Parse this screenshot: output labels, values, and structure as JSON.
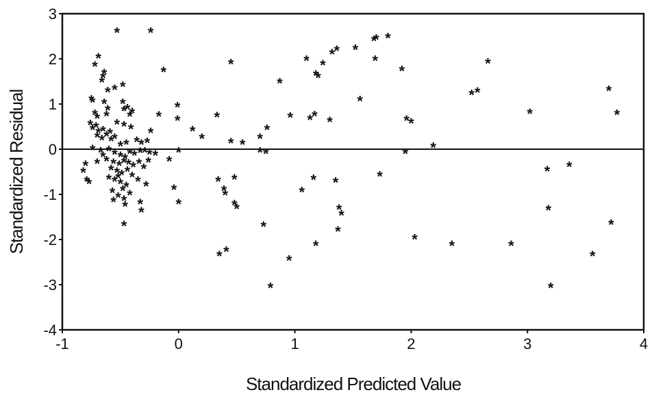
{
  "chart_data": {
    "type": "scatter",
    "title": "",
    "xlabel": "Standardized Predicted Value",
    "ylabel": "Standardized Residual",
    "xlim": [
      -1,
      4
    ],
    "ylim": [
      -4,
      3
    ],
    "xticks": [
      "-1",
      "0",
      "1",
      "2",
      "3",
      "4"
    ],
    "yticks": [
      "3",
      "2",
      "1",
      "0",
      "-1",
      "-2",
      "-3",
      "-4"
    ],
    "reference_line_y": 0,
    "grid": false,
    "marker": "*",
    "points": [
      [
        -0.53,
        2.6
      ],
      [
        -0.24,
        2.6
      ],
      [
        -0.69,
        2.03
      ],
      [
        -0.72,
        1.85
      ],
      [
        -0.64,
        1.68
      ],
      [
        -0.65,
        1.6
      ],
      [
        -0.66,
        1.5
      ],
      [
        -0.55,
        1.33
      ],
      [
        -0.61,
        1.28
      ],
      [
        -0.48,
        1.4
      ],
      [
        -0.13,
        1.73
      ],
      [
        -0.75,
        1.1
      ],
      [
        -0.74,
        1.05
      ],
      [
        -0.64,
        1.02
      ],
      [
        -0.61,
        0.88
      ],
      [
        -0.48,
        1.02
      ],
      [
        -0.44,
        0.9
      ],
      [
        -0.47,
        0.86
      ],
      [
        -0.4,
        0.82
      ],
      [
        -0.72,
        0.78
      ],
      [
        -0.7,
        0.7
      ],
      [
        -0.62,
        0.75
      ],
      [
        -0.42,
        0.74
      ],
      [
        -0.17,
        0.74
      ],
      [
        -0.76,
        0.55
      ],
      [
        -0.74,
        0.45
      ],
      [
        -0.71,
        0.5
      ],
      [
        -0.69,
        0.38
      ],
      [
        -0.65,
        0.42
      ],
      [
        -0.59,
        0.36
      ],
      [
        -0.53,
        0.57
      ],
      [
        -0.47,
        0.52
      ],
      [
        -0.41,
        0.46
      ],
      [
        -0.24,
        0.38
      ],
      [
        -0.7,
        0.28
      ],
      [
        -0.66,
        0.22
      ],
      [
        -0.62,
        0.3
      ],
      [
        -0.58,
        0.2
      ],
      [
        -0.55,
        0.25
      ],
      [
        -0.36,
        0.18
      ],
      [
        -0.32,
        0.12
      ],
      [
        -0.27,
        0.16
      ],
      [
        -0.5,
        0.08
      ],
      [
        -0.45,
        0.12
      ],
      [
        -0.74,
        0.0
      ],
      [
        -0.67,
        -0.05
      ],
      [
        -0.6,
        -0.02
      ],
      [
        -0.55,
        -0.1
      ],
      [
        -0.5,
        -0.15
      ],
      [
        -0.46,
        -0.2
      ],
      [
        -0.42,
        -0.08
      ],
      [
        -0.38,
        -0.12
      ],
      [
        -0.33,
        -0.06
      ],
      [
        -0.29,
        -0.05
      ],
      [
        -0.25,
        -0.1
      ],
      [
        -0.2,
        -0.12
      ],
      [
        -0.62,
        -0.25
      ],
      [
        -0.56,
        -0.3
      ],
      [
        -0.51,
        -0.35
      ],
      [
        -0.47,
        -0.28
      ],
      [
        -0.43,
        -0.32
      ],
      [
        -0.39,
        -0.38
      ],
      [
        -0.34,
        -0.3
      ],
      [
        -0.3,
        -0.42
      ],
      [
        -0.26,
        -0.27
      ],
      [
        -0.58,
        -0.45
      ],
      [
        -0.53,
        -0.5
      ],
      [
        -0.49,
        -0.55
      ],
      [
        -0.44,
        -0.48
      ],
      [
        -0.4,
        -0.6
      ],
      [
        -0.6,
        -0.65
      ],
      [
        -0.55,
        -0.7
      ],
      [
        -0.5,
        -0.75
      ],
      [
        -0.45,
        -0.82
      ],
      [
        -0.35,
        -0.7
      ],
      [
        -0.28,
        -0.8
      ],
      [
        -0.57,
        -0.95
      ],
      [
        -0.52,
        -1.05
      ],
      [
        -0.47,
        -1.12
      ],
      [
        -0.42,
        -1.0
      ],
      [
        -0.56,
        -1.15
      ],
      [
        -0.46,
        -1.25
      ],
      [
        -0.33,
        -1.2
      ],
      [
        -0.32,
        -1.38
      ],
      [
        -0.47,
        -1.68
      ],
      [
        -0.8,
        -0.35
      ],
      [
        -0.82,
        -0.5
      ],
      [
        -0.79,
        -0.7
      ],
      [
        -0.77,
        -0.75
      ],
      [
        -0.7,
        -0.3
      ],
      [
        -0.65,
        -0.15
      ],
      [
        -0.52,
        -0.62
      ],
      [
        -0.48,
        -0.9
      ],
      [
        -0.01,
        0.95
      ],
      [
        -0.01,
        0.65
      ],
      [
        0.12,
        0.42
      ],
      [
        0.2,
        0.25
      ],
      [
        -0.08,
        -0.25
      ],
      [
        0.0,
        -0.05
      ],
      [
        -0.04,
        -0.88
      ],
      [
        0.0,
        -1.2
      ],
      [
        0.33,
        0.73
      ],
      [
        0.45,
        1.9
      ],
      [
        0.45,
        0.15
      ],
      [
        0.55,
        0.12
      ],
      [
        0.7,
        0.25
      ],
      [
        0.76,
        0.45
      ],
      [
        0.7,
        -0.05
      ],
      [
        0.75,
        -0.08
      ],
      [
        0.34,
        -0.7
      ],
      [
        0.39,
        -0.9
      ],
      [
        0.4,
        -1.0
      ],
      [
        0.48,
        -0.65
      ],
      [
        0.48,
        -1.22
      ],
      [
        0.5,
        -1.3
      ],
      [
        0.73,
        -1.7
      ],
      [
        0.35,
        -2.35
      ],
      [
        0.41,
        -2.25
      ],
      [
        0.79,
        -3.05
      ],
      [
        0.87,
        1.48
      ],
      [
        0.96,
        0.72
      ],
      [
        1.1,
        1.98
      ],
      [
        1.13,
        0.67
      ],
      [
        1.17,
        0.75
      ],
      [
        1.18,
        1.65
      ],
      [
        1.2,
        1.6
      ],
      [
        1.24,
        1.88
      ],
      [
        1.32,
        2.12
      ],
      [
        1.36,
        2.2
      ],
      [
        1.52,
        2.22
      ],
      [
        1.3,
        0.62
      ],
      [
        1.56,
        1.08
      ],
      [
        1.06,
        -0.93
      ],
      [
        1.16,
        -0.66
      ],
      [
        0.95,
        -2.45
      ],
      [
        1.18,
        -2.12
      ],
      [
        1.35,
        -0.72
      ],
      [
        1.38,
        -1.32
      ],
      [
        1.4,
        -1.45
      ],
      [
        1.37,
        -1.8
      ],
      [
        1.68,
        2.42
      ],
      [
        1.7,
        2.45
      ],
      [
        1.8,
        2.48
      ],
      [
        1.69,
        1.98
      ],
      [
        1.92,
        1.75
      ],
      [
        1.96,
        0.65
      ],
      [
        2.0,
        0.59
      ],
      [
        1.95,
        -0.08
      ],
      [
        2.19,
        0.05
      ],
      [
        1.73,
        -0.58
      ],
      [
        2.03,
        -1.98
      ],
      [
        2.35,
        -2.12
      ],
      [
        2.52,
        1.22
      ],
      [
        2.57,
        1.27
      ],
      [
        2.66,
        1.92
      ],
      [
        3.02,
        0.8
      ],
      [
        2.86,
        -2.12
      ],
      [
        3.17,
        -0.47
      ],
      [
        3.36,
        -0.37
      ],
      [
        3.18,
        -1.33
      ],
      [
        3.2,
        -3.05
      ],
      [
        3.56,
        -2.35
      ],
      [
        3.7,
        1.31
      ],
      [
        3.72,
        -1.65
      ],
      [
        3.77,
        0.78
      ]
    ]
  }
}
